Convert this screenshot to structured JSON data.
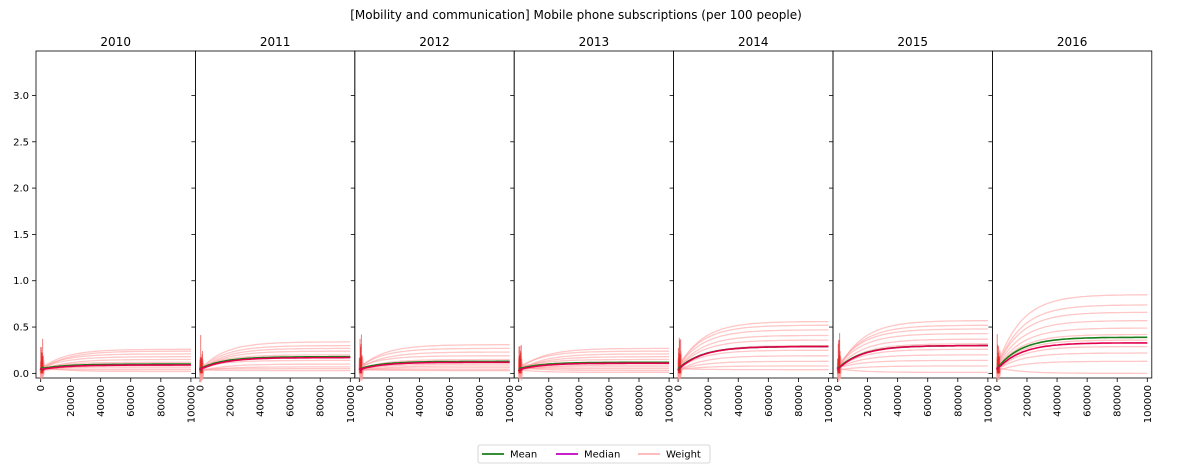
{
  "chart_data": {
    "type": "line",
    "title": "[Mobility and communication] Mobile phone subscriptions (per 100 people)",
    "xlim": [
      -3000,
      103000
    ],
    "ylim": [
      -0.05,
      3.48
    ],
    "x_ticks": [
      0,
      20000,
      40000,
      60000,
      80000,
      100000
    ],
    "y_ticks": [
      0.0,
      0.5,
      1.0,
      1.5,
      2.0,
      2.5,
      3.0
    ],
    "y_tick_labels": [
      "0.0",
      "0.5",
      "1.0",
      "1.5",
      "2.0",
      "2.5",
      "3.0"
    ],
    "x_tick_labels": [
      "0",
      "20000",
      "40000",
      "60000",
      "80000",
      "100000"
    ],
    "legend": {
      "position": "bottom-center",
      "entries": [
        {
          "label": "Mean",
          "color": "#1a7f1a"
        },
        {
          "label": "Median",
          "color": "#bf00bf"
        },
        {
          "label": "Weight",
          "color": "#ffb3b3"
        }
      ]
    },
    "colors": {
      "mean": "#1a7f1a",
      "median": "#bf00bf",
      "weight": "#ff9999",
      "median_overlay": "#e0004d"
    },
    "panels": [
      {
        "title": "2010",
        "mean_final": 0.1,
        "median_final": 0.09,
        "weights": [
          0.26,
          0.24,
          0.21,
          0.18,
          0.15,
          0.12,
          0.1,
          0.08,
          0.06,
          0.04,
          0.02
        ]
      },
      {
        "title": "2011",
        "mean_final": 0.18,
        "median_final": 0.17,
        "weights": [
          0.34,
          0.3,
          0.27,
          0.24,
          0.2,
          0.17,
          0.14,
          0.1,
          0.07,
          0.05,
          0.03
        ]
      },
      {
        "title": "2012",
        "mean_final": 0.13,
        "median_final": 0.12,
        "weights": [
          0.31,
          0.27,
          0.23,
          0.19,
          0.15,
          0.12,
          0.1,
          0.08,
          0.06,
          0.04,
          0.03
        ]
      },
      {
        "title": "2013",
        "mean_final": 0.12,
        "median_final": 0.11,
        "weights": [
          0.27,
          0.24,
          0.21,
          0.18,
          0.15,
          0.12,
          0.09,
          0.07,
          0.05,
          0.03,
          0.01
        ]
      },
      {
        "title": "2014",
        "mean_final": 0.29,
        "median_final": 0.29,
        "weights": [
          0.56,
          0.52,
          0.47,
          0.41,
          0.36,
          0.3,
          0.25,
          0.19,
          0.13,
          0.08,
          0.04
        ]
      },
      {
        "title": "2015",
        "mean_final": 0.3,
        "median_final": 0.3,
        "weights": [
          0.57,
          0.52,
          0.48,
          0.43,
          0.37,
          0.32,
          0.26,
          0.2,
          0.14,
          0.08,
          0.01
        ]
      },
      {
        "title": "2016",
        "mean_final": 0.39,
        "median_final": 0.33,
        "weights": [
          0.85,
          0.74,
          0.66,
          0.57,
          0.49,
          0.42,
          0.36,
          0.29,
          0.22,
          0.13,
          0.0
        ]
      }
    ]
  }
}
